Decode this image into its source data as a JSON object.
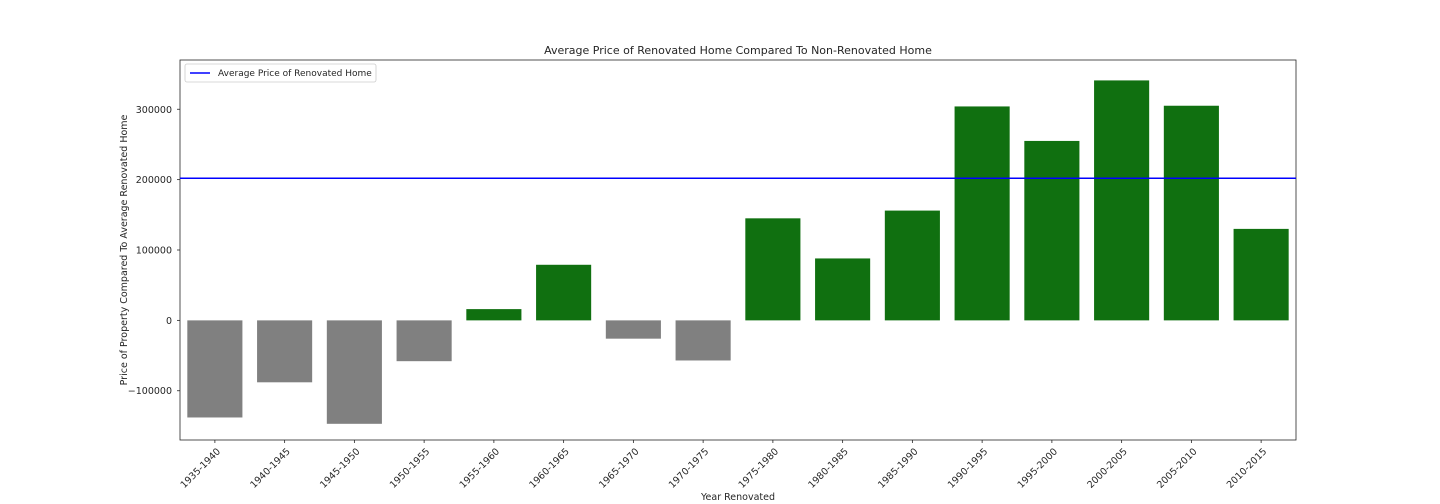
{
  "chart_data": {
    "type": "bar",
    "title": "Average Price of Renovated Home Compared To Non-Renovated Home",
    "xlabel": "Year Renovated",
    "ylabel": "Price of Property Compared To Average Renovated Home",
    "categories": [
      "1935-1940",
      "1940-1945",
      "1945-1950",
      "1950-1955",
      "1955-1960",
      "1960-1965",
      "1965-1970",
      "1970-1975",
      "1975-1980",
      "1980-1985",
      "1985-1990",
      "1990-1995",
      "1995-2000",
      "2000-2005",
      "2005-2010",
      "2010-2015"
    ],
    "values": [
      -138000,
      -88000,
      -147000,
      -58000,
      16000,
      79000,
      -26000,
      -57000,
      145000,
      88000,
      156000,
      304000,
      255000,
      341000,
      305000,
      130000
    ],
    "reference_line": {
      "name": "Average Price of Renovated Home",
      "value": 202000,
      "color": "#0000ff"
    },
    "yticks": [
      -100000,
      0,
      100000,
      200000,
      300000
    ],
    "ylim": [
      -170000,
      370000
    ],
    "colors": {
      "positive": "#107010",
      "negative": "#808080"
    },
    "legend_position": "top-left",
    "grid": false
  }
}
